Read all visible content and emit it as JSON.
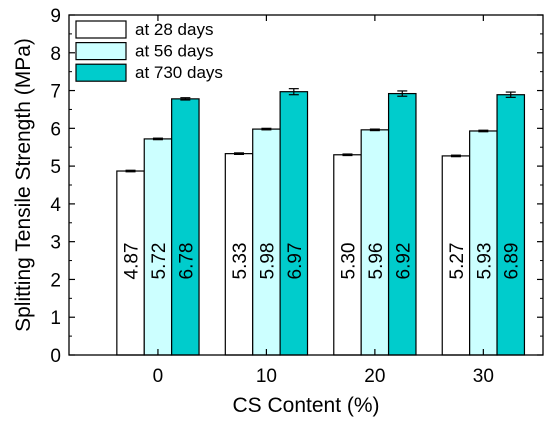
{
  "chart_data": {
    "type": "bar",
    "title": "",
    "xlabel": "CS Content (%)",
    "ylabel": "Splitting Tensile Strength (MPa)",
    "categories": [
      "0",
      "10",
      "20",
      "30"
    ],
    "ylim": [
      0,
      9
    ],
    "yticks": [
      "0",
      "1",
      "2",
      "3",
      "4",
      "5",
      "6",
      "7",
      "8",
      "9"
    ],
    "legend_position": "top-left",
    "series": [
      {
        "name": "at 28 days",
        "color": "#ffffff",
        "values": [
          4.87,
          5.33,
          5.3,
          5.27
        ],
        "errors": [
          0.02,
          0.02,
          0.02,
          0.02
        ],
        "labels": [
          "4.87",
          "5.33",
          "5.30",
          "5.27"
        ]
      },
      {
        "name": "at 56 days",
        "color": "#ccffff",
        "values": [
          5.72,
          5.98,
          5.96,
          5.93
        ],
        "errors": [
          0.02,
          0.02,
          0.02,
          0.02
        ],
        "labels": [
          "5.72",
          "5.98",
          "5.96",
          "5.93"
        ]
      },
      {
        "name": "at 730 days",
        "color": "#00cccc",
        "values": [
          6.78,
          6.97,
          6.92,
          6.89
        ],
        "errors": [
          0.03,
          0.08,
          0.07,
          0.07
        ],
        "labels": [
          "6.78",
          "6.97",
          "6.92",
          "6.89"
        ]
      }
    ]
  }
}
